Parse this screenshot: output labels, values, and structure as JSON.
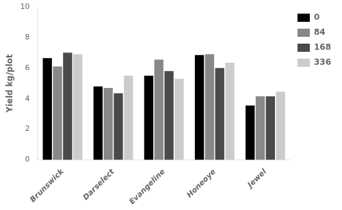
{
  "chart_data": {
    "type": "bar",
    "categories": [
      "Brunswick",
      "Darselect",
      "Evangeline",
      "Honeoye",
      "Jewel"
    ],
    "series": [
      {
        "name": "0",
        "color": "#000000",
        "values": [
          6.65,
          4.8,
          5.5,
          6.85,
          3.55
        ]
      },
      {
        "name": "84",
        "color": "#888888",
        "values": [
          6.1,
          4.7,
          6.55,
          6.9,
          4.15
        ]
      },
      {
        "name": "168",
        "color": "#4a4a4a",
        "values": [
          7.0,
          4.35,
          5.8,
          6.0,
          4.15
        ]
      },
      {
        "name": "336",
        "color": "#cccccc",
        "values": [
          6.9,
          5.5,
          5.3,
          6.35,
          4.45
        ]
      }
    ],
    "ylabel": "Yield kg/plot",
    "ylim": [
      0,
      10
    ],
    "yticks": [
      0,
      2,
      4,
      6,
      8,
      10
    ],
    "grid": false,
    "legend": "right"
  }
}
